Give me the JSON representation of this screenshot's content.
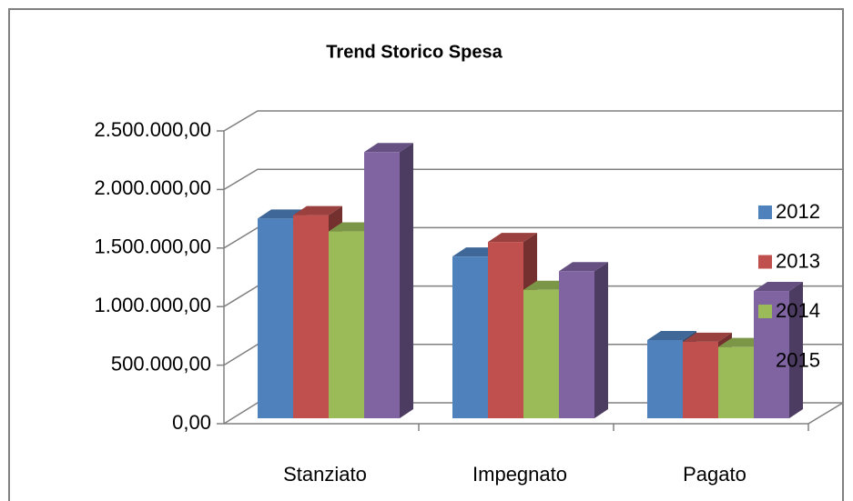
{
  "chart_data": {
    "type": "bar3d",
    "title": "Trend Storico Spesa",
    "categories": [
      "Stanziato",
      "Impegnato",
      "Pagato"
    ],
    "series": [
      {
        "name": "2012",
        "color": "#4f81bd",
        "values": [
          1710000,
          1385000,
          670000
        ]
      },
      {
        "name": "2013",
        "color": "#c0504d",
        "values": [
          1740000,
          1510000,
          655000
        ]
      },
      {
        "name": "2014",
        "color": "#9bbb59",
        "values": [
          1600000,
          1100000,
          610000
        ]
      },
      {
        "name": "2015",
        "color": "#8064a2",
        "values": [
          2280000,
          1260000,
          1090000
        ]
      }
    ],
    "ylim": [
      0,
      2500000
    ],
    "yticks": [
      {
        "value": 0,
        "label": "0,00"
      },
      {
        "value": 500000,
        "label": "500.000,00"
      },
      {
        "value": 1000000,
        "label": "1.000.000,00"
      },
      {
        "value": 1500000,
        "label": "1.500.000,00"
      },
      {
        "value": 2000000,
        "label": "2.000.000,00"
      },
      {
        "value": 2500000,
        "label": "2.500.000,00"
      }
    ],
    "grid": true,
    "legend": "right"
  }
}
